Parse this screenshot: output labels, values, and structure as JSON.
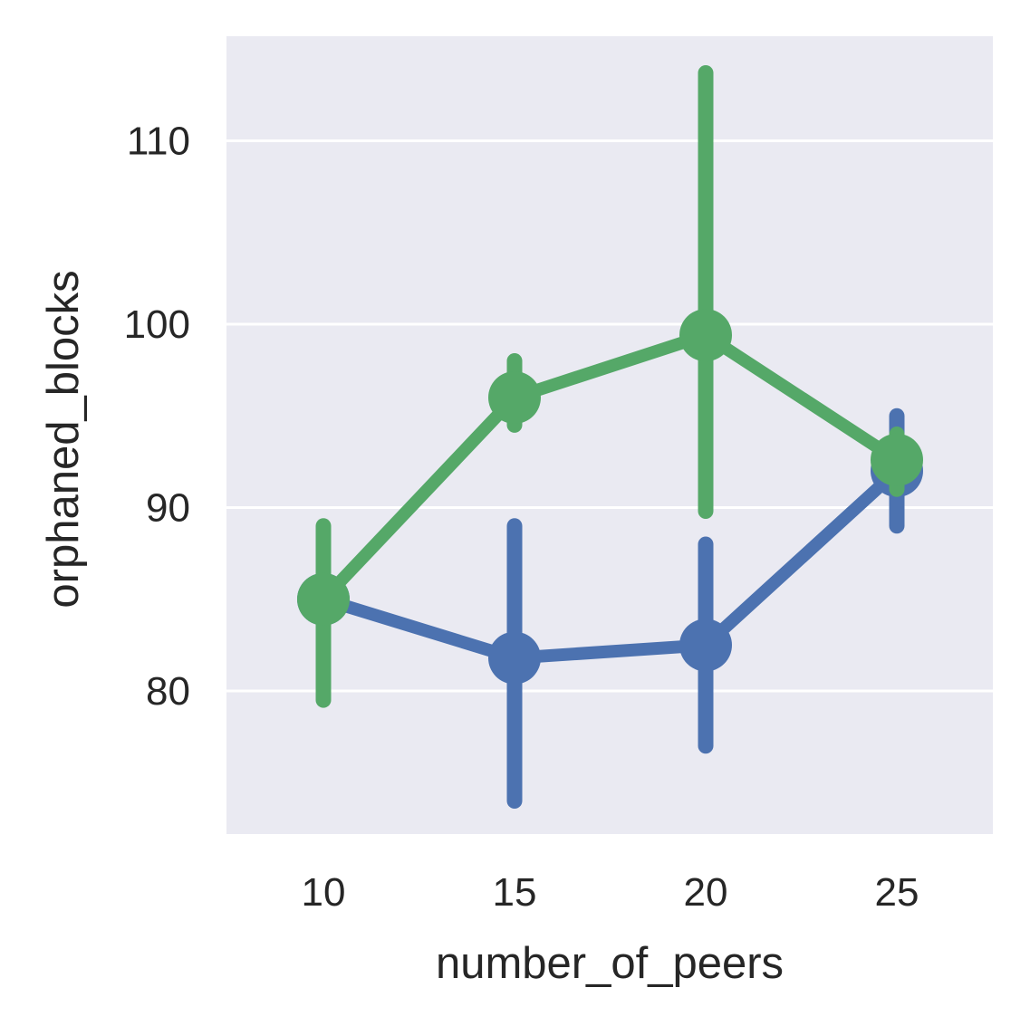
{
  "chart_data": {
    "type": "line",
    "style": "point plot with vertical error bars",
    "xlabel": "number_of_peers",
    "ylabel": "orphaned_blocks",
    "categories": [
      "10",
      "15",
      "20",
      "25"
    ],
    "y_ticks": [
      "80",
      "90",
      "100",
      "110"
    ],
    "ylim": [
      72.2,
      115.7
    ],
    "grid": true,
    "background": "#eaeaf2",
    "series": [
      {
        "color": "#4c72b0",
        "values": [
          85.0,
          81.8,
          82.5,
          92.0
        ],
        "ci_low": [
          85.0,
          74.0,
          77.0,
          89.0
        ],
        "ci_high": [
          85.0,
          89.0,
          88.0,
          95.0
        ]
      },
      {
        "color": "#55a868",
        "values": [
          85.0,
          96.0,
          99.4,
          92.6
        ],
        "ci_low": [
          79.5,
          94.5,
          89.8,
          91.0
        ],
        "ci_high": [
          89.0,
          98.0,
          113.7,
          94.0
        ]
      }
    ]
  }
}
